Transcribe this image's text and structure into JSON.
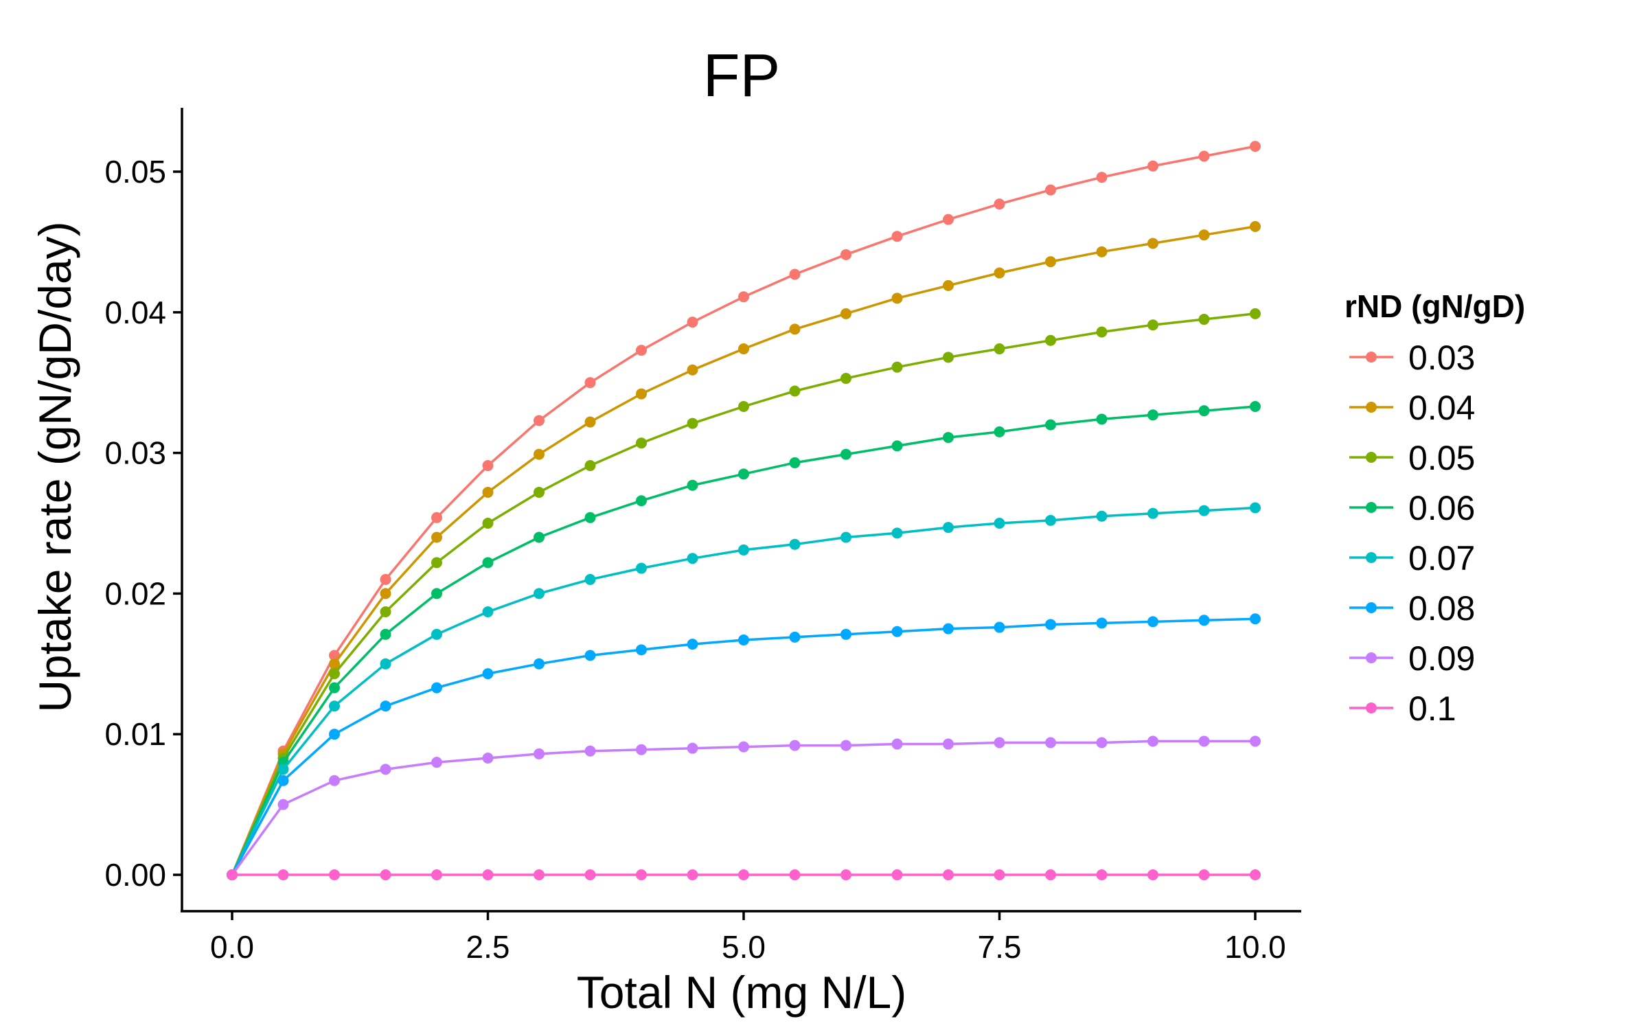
{
  "chart_data": {
    "type": "line",
    "title": "FP",
    "xlabel": "Total N (mg N/L)",
    "ylabel": "Uptake rate (gN/gD/day)",
    "xlim": [
      0,
      10
    ],
    "ylim": [
      0,
      0.05
    ],
    "x_ticks": [
      0,
      2.5,
      5,
      7.5,
      10
    ],
    "x_tick_labels": [
      "0.0",
      "2.5",
      "5.0",
      "7.5",
      "10.0"
    ],
    "y_ticks": [
      0,
      0.01,
      0.02,
      0.03,
      0.04,
      0.05
    ],
    "y_tick_labels": [
      "0.00",
      "0.01",
      "0.02",
      "0.03",
      "0.04",
      "0.05"
    ],
    "grid": false,
    "legend_title": "rND (gN/gD)",
    "legend_position": "right",
    "x": [
      0,
      0.5,
      1,
      1.5,
      2,
      2.5,
      3,
      3.5,
      4,
      4.5,
      5,
      5.5,
      6,
      6.5,
      7,
      7.5,
      8,
      8.5,
      9,
      9.5,
      10
    ],
    "series": [
      {
        "name": "0.03",
        "color": "#F8766D",
        "values": [
          0,
          0.0088,
          0.0156,
          0.021,
          0.0254,
          0.0291,
          0.0323,
          0.035,
          0.0373,
          0.0393,
          0.0411,
          0.0427,
          0.0441,
          0.0454,
          0.0466,
          0.0477,
          0.0487,
          0.0496,
          0.0504,
          0.0511,
          0.0518
        ]
      },
      {
        "name": "0.04",
        "color": "#CD9600",
        "values": [
          0,
          0.0086,
          0.015,
          0.02,
          0.024,
          0.0272,
          0.0299,
          0.0322,
          0.0342,
          0.0359,
          0.0374,
          0.0388,
          0.0399,
          0.041,
          0.0419,
          0.0428,
          0.0436,
          0.0443,
          0.0449,
          0.0455,
          0.0461
        ]
      },
      {
        "name": "0.05",
        "color": "#7CAE00",
        "values": [
          0,
          0.0083,
          0.0143,
          0.0187,
          0.0222,
          0.025,
          0.0272,
          0.0291,
          0.0307,
          0.0321,
          0.0333,
          0.0344,
          0.0353,
          0.0361,
          0.0368,
          0.0374,
          0.038,
          0.0386,
          0.0391,
          0.0395,
          0.0399
        ]
      },
      {
        "name": "0.06",
        "color": "#00BE67",
        "values": [
          0,
          0.008,
          0.0133,
          0.0171,
          0.02,
          0.0222,
          0.024,
          0.0254,
          0.0266,
          0.0277,
          0.0285,
          0.0293,
          0.0299,
          0.0305,
          0.0311,
          0.0315,
          0.032,
          0.0324,
          0.0327,
          0.033,
          0.0333
        ]
      },
      {
        "name": "0.07",
        "color": "#00BFC4",
        "values": [
          0,
          0.0075,
          0.012,
          0.015,
          0.0171,
          0.0187,
          0.02,
          0.021,
          0.0218,
          0.0225,
          0.0231,
          0.0235,
          0.024,
          0.0243,
          0.0247,
          0.025,
          0.0252,
          0.0255,
          0.0257,
          0.0259,
          0.0261
        ]
      },
      {
        "name": "0.08",
        "color": "#00A9FF",
        "values": [
          0,
          0.0067,
          0.01,
          0.012,
          0.0133,
          0.0143,
          0.015,
          0.0156,
          0.016,
          0.0164,
          0.0167,
          0.0169,
          0.0171,
          0.0173,
          0.0175,
          0.0176,
          0.0178,
          0.0179,
          0.018,
          0.0181,
          0.0182
        ]
      },
      {
        "name": "0.09",
        "color": "#C77CFF",
        "values": [
          0,
          0.005,
          0.0067,
          0.0075,
          0.008,
          0.0083,
          0.0086,
          0.0088,
          0.0089,
          0.009,
          0.0091,
          0.0092,
          0.0092,
          0.0093,
          0.0093,
          0.0094,
          0.0094,
          0.0094,
          0.0095,
          0.0095,
          0.0095
        ]
      },
      {
        "name": "0.1",
        "color": "#FF61CC",
        "values": [
          0,
          0,
          0,
          0,
          0,
          0,
          0,
          0,
          0,
          0,
          0,
          0,
          0,
          0,
          0,
          0,
          0,
          0,
          0,
          0,
          0
        ]
      }
    ]
  }
}
